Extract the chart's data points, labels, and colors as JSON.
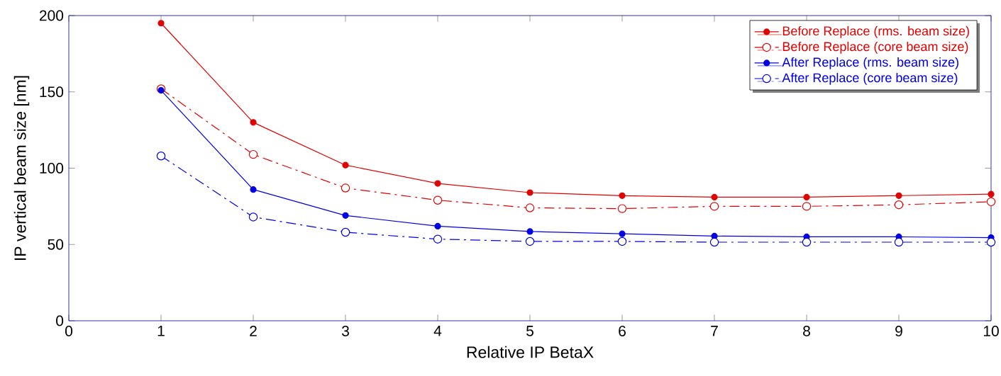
{
  "chart_data": {
    "type": "line",
    "xlabel": "Relative IP BetaX",
    "ylabel": "IP vertical beam size [nm]",
    "x": [
      1,
      2,
      3,
      4,
      5,
      6,
      7,
      8,
      9,
      10
    ],
    "series": [
      {
        "name": "Before Replace (rms. beam size)",
        "color": "#e00000",
        "line_style": "solid",
        "values": [
          195,
          130,
          102,
          90,
          84,
          82,
          81,
          81,
          82,
          83
        ]
      },
      {
        "name": "Before Replace (core beam size)",
        "color": "#e00000",
        "line_style": "dashed",
        "values": [
          152,
          109,
          87,
          79,
          74,
          73.5,
          75,
          75,
          76,
          78
        ]
      },
      {
        "name": "After Replace (rms. beam size)",
        "color": "#0000e6",
        "line_style": "solid",
        "values": [
          151,
          86,
          69,
          62,
          58.5,
          57,
          55.5,
          55,
          55,
          54.5
        ]
      },
      {
        "name": "After Replace (core beam size)",
        "color": "#0000e6",
        "line_style": "dashed",
        "values": [
          108,
          68,
          58,
          53.5,
          52,
          52,
          51.5,
          51.5,
          51.5,
          51.5
        ]
      }
    ],
    "marker": "circle",
    "xlim": [
      0,
      10
    ],
    "ylim": [
      0,
      200
    ],
    "xticks": [
      0,
      1,
      2,
      3,
      4,
      5,
      6,
      7,
      8,
      9,
      10
    ],
    "yticks": [
      0,
      50,
      100,
      150,
      200
    ],
    "legend": "top right",
    "grid": false
  }
}
